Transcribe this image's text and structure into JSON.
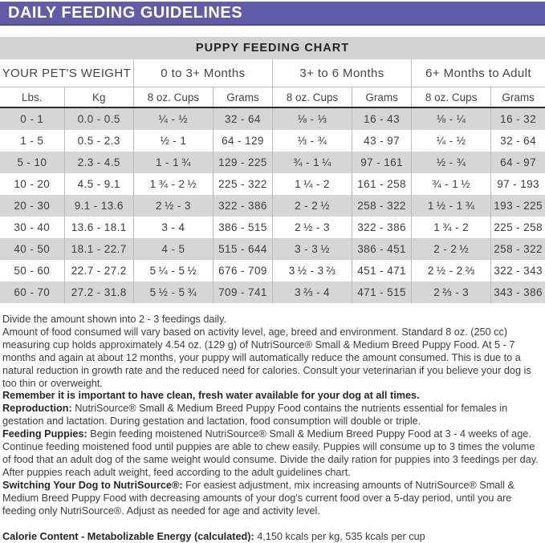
{
  "banner": {
    "title": "DAILY FEEDING GUIDELINES",
    "bg_color": "#615CA8",
    "text_color": "#FFFFFF"
  },
  "chart": {
    "title": "PUPPY FEEDING CHART",
    "weight_header": "YOUR PET'S WEIGHT",
    "groups": [
      {
        "label": "0 to 3+ Months"
      },
      {
        "label": "3+ to 6 Months"
      },
      {
        "label": "6+ Months to Adult"
      }
    ],
    "subheaders": {
      "lbs": "Lbs.",
      "kg": "Kg",
      "cups": "8 oz. Cups",
      "grams": "Grams"
    },
    "rows": [
      [
        "0 - 1",
        "0.0 - 0.5",
        "¼ - ½",
        "32 - 64",
        "⅛ - ⅓",
        "16 - 43",
        "⅛ - ¼",
        "16 - 32"
      ],
      [
        "1 - 5",
        "0.5 - 2.3",
        "½ - 1",
        "64 - 129",
        "⅓ - ¾",
        "43 - 97",
        "¼ - ½",
        "32 - 64"
      ],
      [
        "5 - 10",
        "2.3 - 4.5",
        "1 - 1 ¾",
        "129 - 225",
        "¾ - 1 ¼",
        "97 - 161",
        "½ - ¾",
        "64 - 97"
      ],
      [
        "10 - 20",
        "4.5 - 9.1",
        "1 ¾ - 2 ½",
        "225 - 322",
        "1 ¼ - 2",
        "161 - 258",
        "¾ - 1 ½",
        "97 - 193"
      ],
      [
        "20 - 30",
        "9.1 - 13.6",
        "2 ½ - 3",
        "322 - 386",
        "2 - 2 ½",
        "258 - 322",
        "1 ½ - 1 ¾",
        "193 - 225"
      ],
      [
        "30 - 40",
        "13.6 - 18.1",
        "3 - 4",
        "386 - 515",
        "2 ½ - 3",
        "322 - 386",
        "1 ¾ - 2",
        "225 - 258"
      ],
      [
        "40 - 50",
        "18.1 - 22.7",
        "4 - 5",
        "515 - 644",
        "3 - 3 ½",
        "386 - 451",
        "2 - 2 ½",
        "258 - 322"
      ],
      [
        "50 - 60",
        "22.7 - 27.2",
        "5 ¼ - 5 ½",
        "676 - 709",
        "3 ½ - 3 ⅔",
        "451 - 471",
        "2 ½ - 2 ⅔",
        "322 - 343"
      ],
      [
        "60 - 70",
        "27.2 - 31.8",
        "5 ½ - 5 ¾",
        "709 - 741",
        "3 ⅔ - 4",
        "471 - 515",
        "2 ⅔ - 3",
        "343 - 386"
      ]
    ]
  },
  "notes": [
    {
      "bold": "",
      "text": "Divide the amount shown into 2 - 3 feedings daily."
    },
    {
      "bold": "",
      "text": "Amount of food consumed will vary based on activity level, age, breed and environment. Standard 8 oz. (250 cc) measuring cup holds approximately 4.54 oz. (129 g) of NutriSource® Small & Medium Breed Puppy Food. At 5 - 7 months and again at about 12 months, your puppy will automatically reduce the amount consumed. This is due to a natural reduction in growth rate and the reduced need for calories. Consult your veterinarian if you believe your dog is too thin or overweight."
    },
    {
      "bold": "Remember it is important to have clean, fresh water available for your dog at all times.",
      "text": ""
    },
    {
      "bold": "Reproduction:",
      "text": " NutriSource® Small & Medium Breed Puppy Food contains the nutrients essential for females in gestation and lactation. During gestation and lactation, food consumption will double or triple."
    },
    {
      "bold": "Feeding Puppies:",
      "text": " Begin feeding moistened NutriSource® Small & Medium Breed Puppy Food at 3 - 4 weeks of age. Continue feeding moistened food until puppies are able to chew easily. Puppies will consume up to 3 times the volume of food that an adult dog of the same weight would consume. Divide the daily ration for puppies into 3 feedings per day. After puppies reach adult weight, feed according to the adult guidelines chart."
    },
    {
      "bold": "Switching Your Dog to NutriSource®:",
      "text": " For easiest adjustment, mix increasing amounts of NutriSource® Small & Medium Breed Puppy Food with decreasing amounts of your dog's current food over a 5-day period, until you are feeding only NutriSource®. Adjust as needed for age and activity level."
    }
  ],
  "calorie": {
    "bold": "Calorie Content - Metabolizable Energy (calculated):",
    "text": " 4,150 kcals per kg, 535 kcals per cup"
  }
}
